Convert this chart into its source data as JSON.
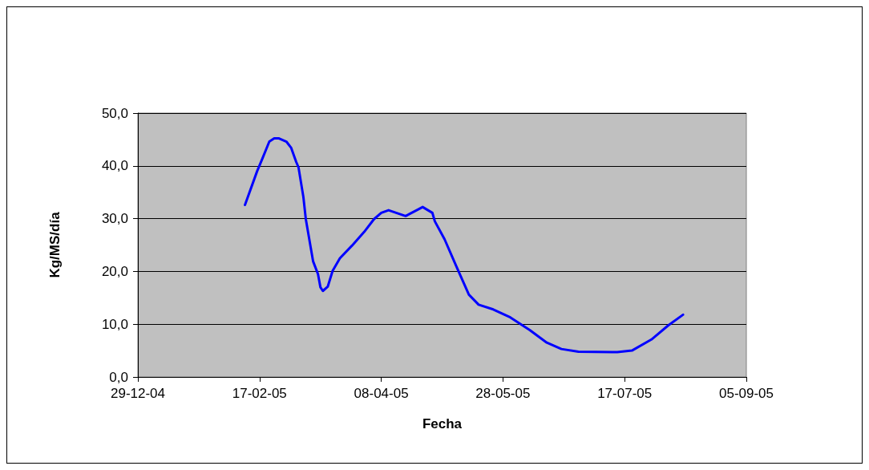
{
  "chart_data": {
    "type": "line",
    "xlabel": "Fecha",
    "ylabel": "Kg/MS/día",
    "grid": "y",
    "marker": "none",
    "line_style": "solid",
    "x": [
      "2005-02-11",
      "2005-02-16",
      "2005-02-18",
      "2005-02-21",
      "2005-02-23",
      "2005-02-25",
      "2005-02-28",
      "2005-03-02",
      "2005-03-04",
      "2005-03-05",
      "2005-03-07",
      "2005-03-08",
      "2005-03-11",
      "2005-03-13",
      "2005-03-14",
      "2005-03-15",
      "2005-03-17",
      "2005-03-19",
      "2005-03-22",
      "2005-03-27",
      "2005-04-01",
      "2005-04-05",
      "2005-04-08",
      "2005-04-11",
      "2005-04-18",
      "2005-04-23",
      "2005-04-25",
      "2005-04-29",
      "2005-04-30",
      "2005-05-04",
      "2005-05-09",
      "2005-05-14",
      "2005-05-18",
      "2005-05-24",
      "2005-05-31",
      "2005-06-08",
      "2005-06-15",
      "2005-06-21",
      "2005-06-28",
      "2005-07-14",
      "2005-07-20",
      "2005-07-28",
      "2005-08-04",
      "2005-08-10"
    ],
    "series": [
      {
        "color": "#0000ff",
        "values": [
          32.6,
          39.0,
          41.2,
          44.6,
          45.2,
          45.2,
          44.6,
          43.4,
          40.8,
          39.7,
          34.1,
          29.9,
          21.9,
          19.5,
          17.0,
          16.3,
          17.1,
          20.1,
          22.5,
          24.9,
          27.5,
          29.9,
          31.1,
          31.6,
          30.5,
          31.7,
          32.2,
          31.1,
          29.5,
          26.1,
          20.8,
          15.6,
          13.7,
          12.8,
          11.3,
          8.9,
          6.5,
          5.3,
          4.8,
          4.7,
          5.0,
          7.1,
          9.8,
          11.8
        ]
      }
    ],
    "xlim": [
      "2004-12-29",
      "2005-09-05"
    ],
    "xticks": [
      {
        "value": "2004-12-29",
        "label": "29-12-04"
      },
      {
        "value": "2005-02-17",
        "label": "17-02-05"
      },
      {
        "value": "2005-04-08",
        "label": "08-04-05"
      },
      {
        "value": "2005-05-28",
        "label": "28-05-05"
      },
      {
        "value": "2005-07-17",
        "label": "17-07-05"
      },
      {
        "value": "2005-09-05",
        "label": "05-09-05"
      }
    ],
    "ylim": [
      0,
      50
    ],
    "yticks": [
      {
        "value": 0,
        "label": "0,0"
      },
      {
        "value": 10,
        "label": "10,0"
      },
      {
        "value": 20,
        "label": "20,0"
      },
      {
        "value": 30,
        "label": "30,0"
      },
      {
        "value": 40,
        "label": "40,0"
      },
      {
        "value": 50,
        "label": "50,0"
      }
    ]
  }
}
